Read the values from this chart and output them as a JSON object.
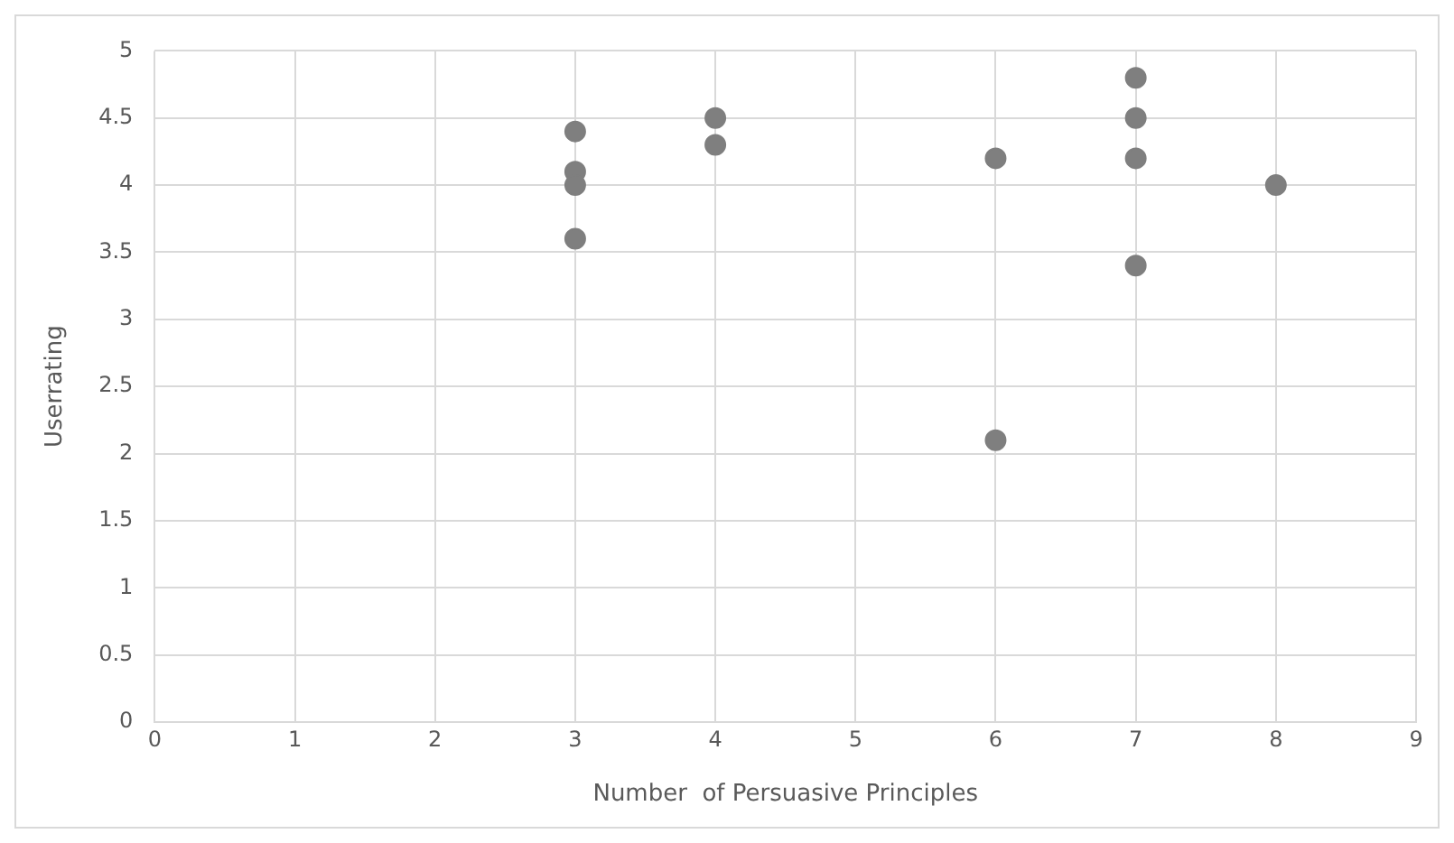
{
  "chart_data": {
    "type": "scatter",
    "xlabel": "Number  of Persuasive Principles",
    "ylabel": "Userrating",
    "x": [
      3,
      3,
      3,
      3,
      4,
      4,
      6,
      6,
      7,
      7,
      7,
      7,
      8
    ],
    "values": [
      4.4,
      4.1,
      4.0,
      3.6,
      4.5,
      4.3,
      4.2,
      2.1,
      4.8,
      4.5,
      4.2,
      3.4,
      4.0
    ],
    "color": "#7f7f7f",
    "marker": "circle",
    "xlim": [
      0,
      9
    ],
    "xticks": [
      0,
      1,
      2,
      3,
      4,
      5,
      6,
      7,
      8,
      9
    ],
    "ylim": [
      0,
      5
    ],
    "yticks": [
      0,
      0.5,
      1,
      1.5,
      2,
      2.5,
      3,
      3.5,
      4,
      4.5,
      5
    ],
    "grid": true,
    "legend": false
  }
}
